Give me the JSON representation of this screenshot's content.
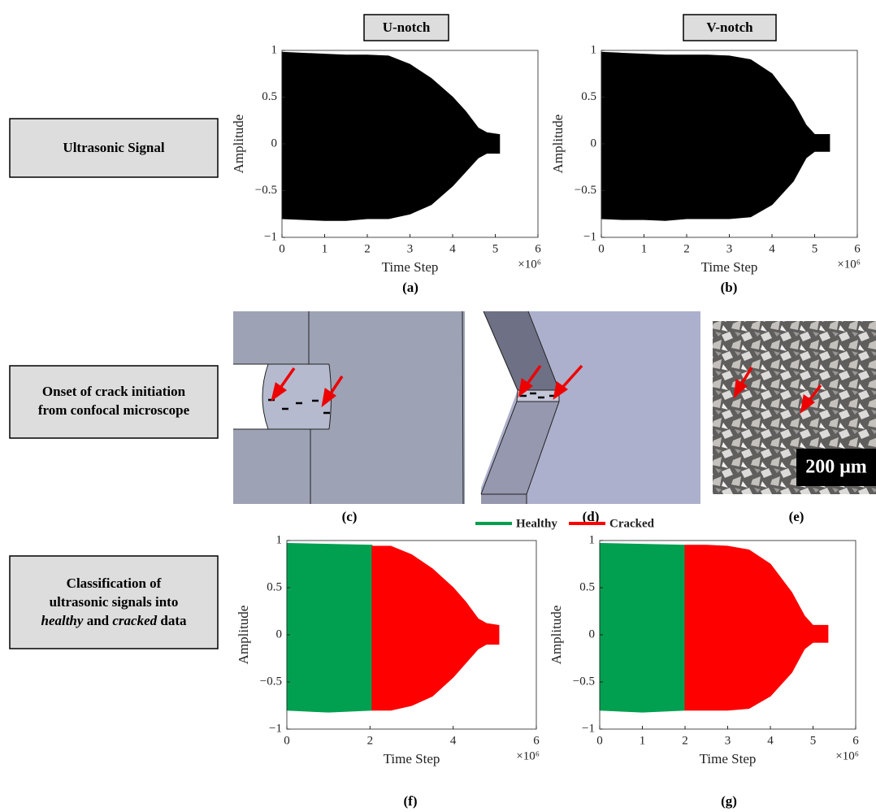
{
  "headers": [
    "U-notch",
    "V-notch"
  ],
  "rows": [
    {
      "lines": [
        "Ultrasonic Signal"
      ]
    },
    {
      "lines": [
        "Onset of crack initiation",
        "from confocal microscope"
      ]
    },
    {
      "lines": [
        "Classification of",
        "ultrasonic signals into"
      ],
      "last_line": [
        "healthy",
        "and",
        "cracked",
        "data"
      ]
    }
  ],
  "panel_labels": [
    "(a)",
    "(b)",
    "(c)",
    "(d)",
    "(e)",
    "(f)",
    "(g)"
  ],
  "scale_bar": "200 μm",
  "chart_data": [
    {
      "type": "envelope",
      "xlabel": "Time Step",
      "ylabel": "Amplitude",
      "x_multiplier": "×10⁶",
      "xlim": [
        0,
        6
      ],
      "ylim": [
        -1,
        1
      ],
      "xticks": [
        0,
        1,
        2,
        3,
        4,
        5,
        6
      ],
      "yticks": [
        {
          "value": -1,
          "label": "−1"
        },
        {
          "value": -0.5,
          "label": "−0.5"
        },
        0,
        0.5,
        1
      ],
      "series": [
        {
          "color": "#000000",
          "x": [
            0,
            0.5,
            1,
            1.5,
            2,
            2.5,
            3,
            3.5,
            4,
            4.3,
            4.6,
            4.8,
            5.1
          ],
          "upper": [
            0.98,
            0.97,
            0.96,
            0.95,
            0.95,
            0.94,
            0.85,
            0.7,
            0.5,
            0.35,
            0.17,
            0.12,
            0.1
          ],
          "lower": [
            -0.8,
            -0.81,
            -0.82,
            -0.82,
            -0.8,
            -0.8,
            -0.75,
            -0.65,
            -0.45,
            -0.3,
            -0.15,
            -0.1,
            -0.1
          ]
        }
      ]
    },
    {
      "type": "envelope",
      "xlabel": "Time Step",
      "ylabel": "Amplitude",
      "x_multiplier": "×10⁶",
      "xlim": [
        0,
        6
      ],
      "ylim": [
        -1,
        1
      ],
      "xticks": [
        0,
        1,
        2,
        3,
        4,
        5,
        6
      ],
      "yticks": [
        {
          "value": -1,
          "label": "−1"
        },
        {
          "value": -0.5,
          "label": "−0.5"
        },
        0,
        0.5,
        1
      ],
      "series": [
        {
          "color": "#000000",
          "x": [
            0,
            0.5,
            1,
            1.5,
            2,
            2.5,
            3,
            3.5,
            4,
            4.5,
            4.8,
            5,
            5.35
          ],
          "upper": [
            0.98,
            0.97,
            0.96,
            0.95,
            0.95,
            0.95,
            0.94,
            0.9,
            0.75,
            0.45,
            0.2,
            0.1,
            0.1
          ],
          "lower": [
            -0.8,
            -0.81,
            -0.81,
            -0.82,
            -0.8,
            -0.8,
            -0.8,
            -0.78,
            -0.65,
            -0.4,
            -0.15,
            -0.08,
            -0.08
          ]
        }
      ]
    },
    {
      "type": "envelope",
      "xlabel": "Time Step",
      "ylabel": "Amplitude",
      "x_multiplier": "×10⁶",
      "xlim": [
        0,
        6
      ],
      "ylim": [
        -1,
        1
      ],
      "xticks": [
        0,
        2,
        4,
        6
      ],
      "yticks": [
        {
          "value": -1,
          "label": "−1"
        },
        {
          "value": -0.5,
          "label": "−0.5"
        },
        0,
        0.5,
        1
      ],
      "series": [
        {
          "name": "Healthy",
          "color": "#00a050",
          "x": [
            0,
            1,
            2.05
          ],
          "upper": [
            0.97,
            0.96,
            0.95
          ],
          "lower": [
            -0.8,
            -0.82,
            -0.8
          ]
        },
        {
          "name": "Cracked",
          "color": "#ff0000",
          "x": [
            2.05,
            2.5,
            3,
            3.5,
            4,
            4.3,
            4.6,
            4.8,
            5.1
          ],
          "upper": [
            0.94,
            0.94,
            0.85,
            0.7,
            0.5,
            0.35,
            0.17,
            0.12,
            0.1
          ],
          "lower": [
            -0.8,
            -0.8,
            -0.75,
            -0.65,
            -0.45,
            -0.3,
            -0.15,
            -0.1,
            -0.1
          ]
        }
      ]
    },
    {
      "type": "envelope",
      "xlabel": "Time Step",
      "ylabel": "Amplitude",
      "x_multiplier": "×10⁶",
      "xlim": [
        0,
        6
      ],
      "ylim": [
        -1,
        1
      ],
      "xticks": [
        0,
        1,
        2,
        3,
        4,
        5,
        6
      ],
      "yticks": [
        {
          "value": -1,
          "label": "−1"
        },
        {
          "value": -0.5,
          "label": "−0.5"
        },
        0,
        0.5,
        1
      ],
      "series": [
        {
          "color": "#00a050",
          "x": [
            0,
            1,
            2
          ],
          "upper": [
            0.97,
            0.96,
            0.95
          ],
          "lower": [
            -0.8,
            -0.82,
            -0.8
          ]
        },
        {
          "color": "#ff0000",
          "x": [
            2,
            2.5,
            3,
            3.5,
            4,
            4.5,
            4.8,
            5,
            5.35
          ],
          "upper": [
            0.95,
            0.95,
            0.94,
            0.9,
            0.75,
            0.45,
            0.2,
            0.1,
            0.1
          ],
          "lower": [
            -0.8,
            -0.8,
            -0.8,
            -0.78,
            -0.65,
            -0.4,
            -0.15,
            -0.08,
            -0.08
          ]
        }
      ]
    }
  ]
}
